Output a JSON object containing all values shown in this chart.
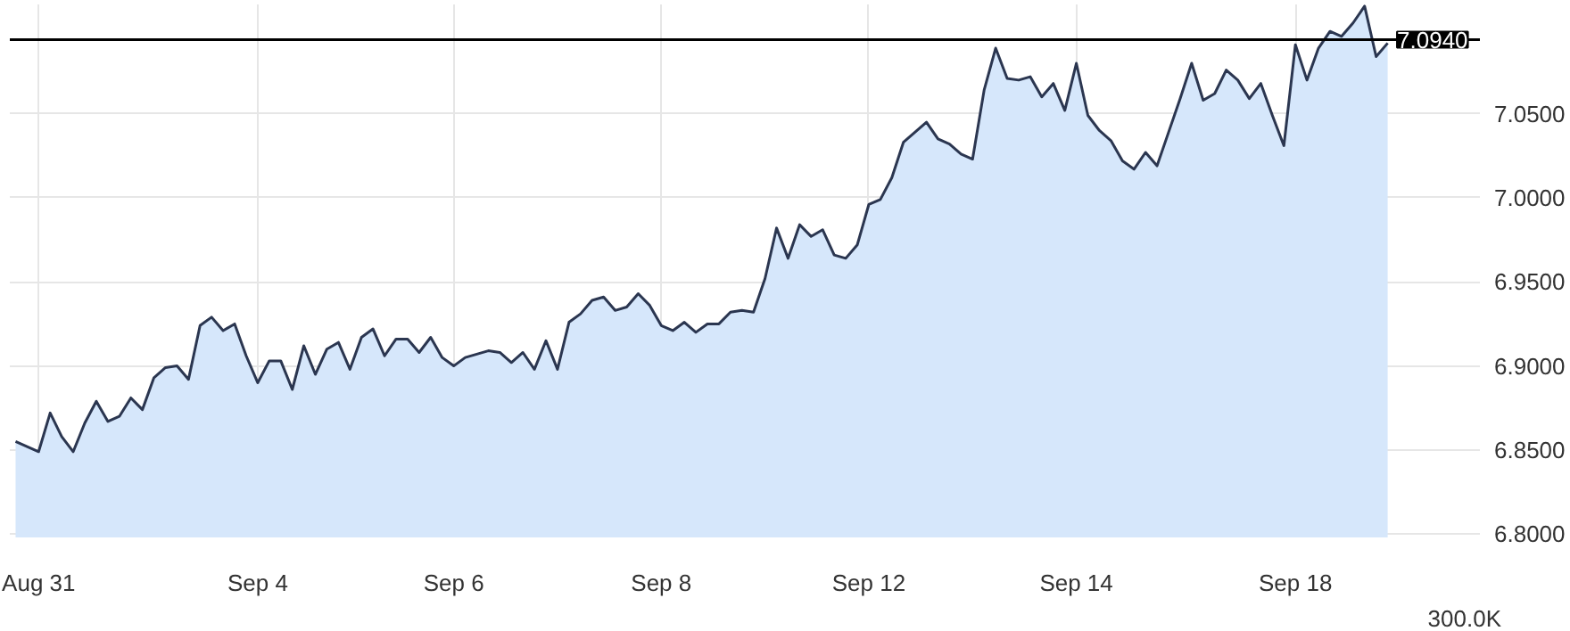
{
  "chart_data": {
    "type": "area",
    "categories": [
      null,
      null,
      "Aug 31",
      null,
      null,
      null,
      null,
      null,
      null,
      null,
      null,
      null,
      null,
      null,
      null,
      null,
      null,
      null,
      null,
      null,
      null,
      "Sep 4",
      null,
      null,
      null,
      null,
      null,
      null,
      null,
      null,
      null,
      null,
      null,
      null,
      null,
      null,
      null,
      null,
      "Sep 6",
      null,
      null,
      null,
      null,
      null,
      null,
      null,
      null,
      null,
      null,
      null,
      null,
      null,
      null,
      null,
      null,
      null,
      "Sep 8",
      null,
      null,
      null,
      null,
      null,
      null,
      null,
      null,
      null,
      null,
      null,
      null,
      null,
      null,
      null,
      null,
      null,
      "Sep 12",
      null,
      null,
      null,
      null,
      null,
      null,
      null,
      null,
      null,
      null,
      null,
      null,
      null,
      null,
      null,
      null,
      null,
      "Sep 14",
      null,
      null,
      null,
      null,
      null,
      null,
      null,
      null,
      null,
      null,
      null,
      null,
      null,
      null,
      null,
      null,
      null,
      null,
      "Sep 18",
      null,
      null,
      null,
      null,
      null,
      null,
      null,
      null
    ],
    "series": [
      {
        "color": "#2b3650",
        "values": [
          6.855,
          6.852,
          6.849,
          6.872,
          6.858,
          6.849,
          6.866,
          6.879,
          6.867,
          6.87,
          6.881,
          6.874,
          6.893,
          6.899,
          6.9,
          6.892,
          6.924,
          6.929,
          6.921,
          6.925,
          6.906,
          6.89,
          6.903,
          6.903,
          6.886,
          6.912,
          6.895,
          6.91,
          6.914,
          6.898,
          6.917,
          6.922,
          6.906,
          6.916,
          6.916,
          6.908,
          6.917,
          6.905,
          6.9,
          6.905,
          6.907,
          6.909,
          6.908,
          6.902,
          6.908,
          6.898,
          6.915,
          6.898,
          6.926,
          6.931,
          6.939,
          6.941,
          6.933,
          6.935,
          6.943,
          6.936,
          6.924,
          6.921,
          6.926,
          6.92,
          6.925,
          6.925,
          6.932,
          6.933,
          6.932,
          6.952,
          6.982,
          6.964,
          6.984,
          6.977,
          6.981,
          6.966,
          6.964,
          6.972,
          6.996,
          6.999,
          7.012,
          7.033,
          7.039,
          7.045,
          7.035,
          7.032,
          7.026,
          7.023,
          7.064,
          7.089,
          7.071,
          7.07,
          7.072,
          7.06,
          7.068,
          7.052,
          7.08,
          7.049,
          7.04,
          7.034,
          7.022,
          7.017,
          7.027,
          7.019,
          7.039,
          7.059,
          7.08,
          7.058,
          7.062,
          7.076,
          7.07,
          7.059,
          7.068,
          7.049,
          7.031,
          7.091,
          7.07,
          7.089,
          7.099,
          7.096,
          7.104,
          7.114,
          7.084,
          7.092
        ]
      }
    ],
    "ylim": [
      6.798,
      7.115
    ],
    "yticks": [
      {
        "value": 6.8,
        "label": "6.8000"
      },
      {
        "value": 6.85,
        "label": "6.8500"
      },
      {
        "value": 6.9,
        "label": "6.9000"
      },
      {
        "value": 6.95,
        "label": "6.9500"
      },
      {
        "value": 7.0,
        "label": "7.0000"
      },
      {
        "value": 7.05,
        "label": "7.0500"
      }
    ],
    "grid": true,
    "ref_lines": [
      {
        "axis": "y",
        "value": 7.094,
        "label": "7.0940",
        "color": "#000000"
      }
    ],
    "annotations": [
      "300.0K"
    ]
  }
}
